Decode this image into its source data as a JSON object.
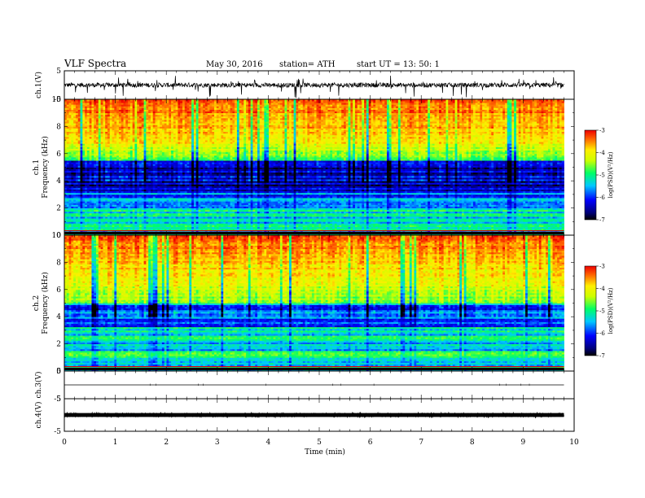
{
  "header": {
    "title": "VLF  Spectra",
    "date": "May 30, 2016",
    "station": "station= ATH",
    "start": "start  UT  =   13: 50: 1"
  },
  "chart_data": {
    "type": "heatmap",
    "title": "VLF  Spectra",
    "xlabel": "Time  (min)",
    "xlim": [
      0,
      10
    ],
    "x_ticks": [
      "0",
      "1",
      "2",
      "3",
      "4",
      "5",
      "6",
      "7",
      "8",
      "9",
      "10"
    ],
    "data_end_min": 9.8,
    "panels": [
      {
        "name": "ch1-waveform",
        "type": "line",
        "ylabel": "ch.1(V)",
        "ylim": [
          -5,
          5
        ],
        "y_ticks": [
          "5",
          "-5"
        ],
        "baseline": 0,
        "amplitude": 0.8,
        "spike_amplitude": 3.5
      },
      {
        "name": "ch1-spectrogram",
        "type": "heatmap",
        "ylabel_channel": "ch.1",
        "ylabel": "Frequency  (kHz)",
        "ylim": [
          0,
          10
        ],
        "y_ticks": [
          "0",
          "2",
          "4",
          "6",
          "8",
          "10"
        ],
        "colorbar": {
          "label": "log(PSD)(V²/Hz)",
          "range": [
            -7,
            -3
          ],
          "ticks": [
            "-3",
            "-4",
            "-5",
            "-6",
            "-7"
          ]
        }
      },
      {
        "name": "ch2-spectrogram",
        "type": "heatmap",
        "ylabel_channel": "ch.2",
        "ylabel": "Frequency  (kHz)",
        "ylim": [
          0,
          10
        ],
        "y_ticks": [
          "0",
          "2",
          "4",
          "6",
          "8",
          "10"
        ],
        "colorbar": {
          "label": "log(PSD)(V²/Hz)",
          "range": [
            -7,
            -3
          ],
          "ticks": [
            "-3",
            "-4",
            "-5",
            "-6",
            "-7"
          ]
        }
      },
      {
        "name": "ch3-waveform",
        "type": "line",
        "ylabel": "ch.3(V)",
        "ylim": [
          -5,
          5
        ],
        "y_ticks": [
          "5",
          "-5"
        ],
        "baseline": 0,
        "amplitude": 0
      },
      {
        "name": "ch4-waveform",
        "type": "line",
        "ylabel": "ch.4(V)",
        "ylim": [
          -5,
          5
        ],
        "y_ticks": [
          "5",
          "-5"
        ],
        "baseline": 0,
        "amplitude": 0.35
      }
    ]
  }
}
